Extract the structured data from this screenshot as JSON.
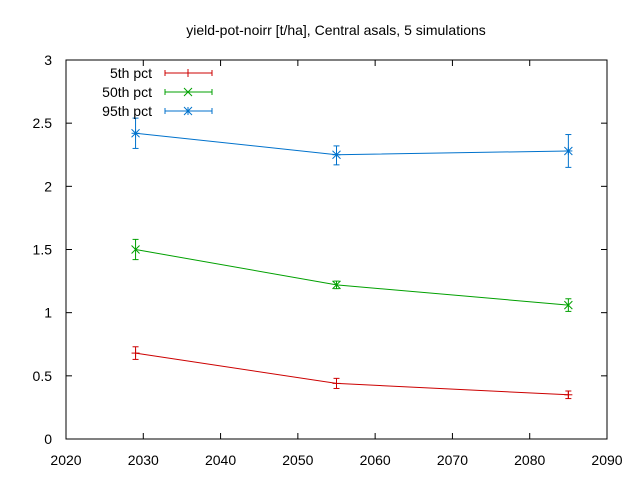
{
  "chart_data": {
    "type": "line",
    "title": "yield-pot-noirr [t/ha], Central asals, 5 simulations",
    "xlabel": "",
    "ylabel": "",
    "xlim": [
      2020,
      2090
    ],
    "ylim": [
      0,
      3
    ],
    "x_ticks": [
      "2020",
      "2030",
      "2040",
      "2050",
      "2060",
      "2070",
      "2080",
      "2090"
    ],
    "y_ticks": [
      "0",
      "0.5",
      "1",
      "1.5",
      "2",
      "2.5",
      "3"
    ],
    "grid": false,
    "legend_position": "top-left",
    "series": [
      {
        "name": "5th pct",
        "color": "#cc0000",
        "marker": "plus",
        "points": [
          {
            "x": 2029,
            "y": 0.68,
            "err_low": 0.63,
            "err_high": 0.73
          },
          {
            "x": 2055,
            "y": 0.44,
            "err_low": 0.4,
            "err_high": 0.48
          },
          {
            "x": 2085,
            "y": 0.35,
            "err_low": 0.32,
            "err_high": 0.38
          }
        ]
      },
      {
        "name": "50th pct",
        "color": "#00a000",
        "marker": "cross",
        "points": [
          {
            "x": 2029,
            "y": 1.5,
            "err_low": 1.42,
            "err_high": 1.58
          },
          {
            "x": 2055,
            "y": 1.22,
            "err_low": 1.19,
            "err_high": 1.25
          },
          {
            "x": 2085,
            "y": 1.06,
            "err_low": 1.01,
            "err_high": 1.11
          }
        ]
      },
      {
        "name": "95th pct",
        "color": "#0072cc",
        "marker": "star",
        "points": [
          {
            "x": 2029,
            "y": 2.42,
            "err_low": 2.3,
            "err_high": 2.54
          },
          {
            "x": 2055,
            "y": 2.25,
            "err_low": 2.17,
            "err_high": 2.32
          },
          {
            "x": 2085,
            "y": 2.28,
            "err_low": 2.15,
            "err_high": 2.41
          }
        ]
      }
    ]
  }
}
